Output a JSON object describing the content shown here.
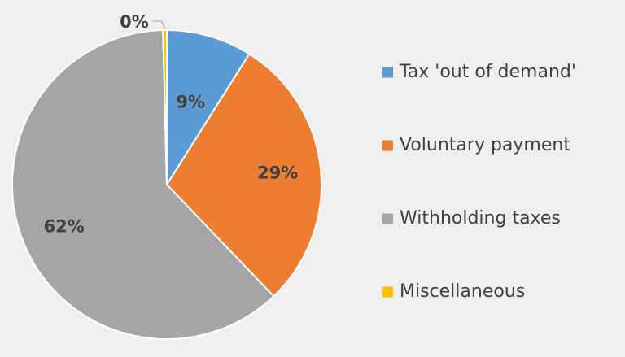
{
  "chart_data": {
    "type": "pie",
    "title": "",
    "start_angle_deg": 0,
    "direction": "clockwise",
    "legend_position": "right",
    "slices": [
      {
        "name": "Tax 'out of demand'",
        "value": 9,
        "label": "9%",
        "color": "#5b9bd5"
      },
      {
        "name": "Voluntary payment",
        "value": 29,
        "label": "29%",
        "color": "#ed7d31"
      },
      {
        "name": "Withholding taxes",
        "value": 62,
        "label": "62%",
        "color": "#a5a5a5"
      },
      {
        "name": "Miscellaneous",
        "value": 0.4,
        "label": "0%",
        "color": "#ffc000"
      }
    ]
  }
}
